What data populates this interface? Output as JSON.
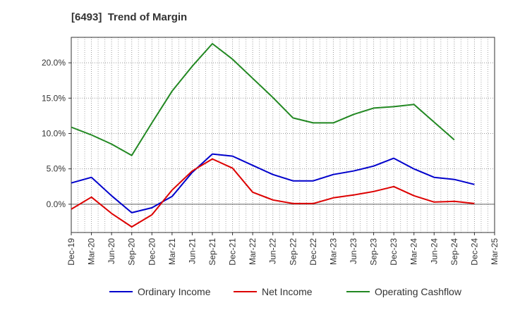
{
  "chart_data": {
    "type": "line",
    "title": "[6493]  Trend of Margin",
    "xlabel": "",
    "ylabel": "",
    "x": [
      "Dec-19",
      "Mar-20",
      "Jun-20",
      "Sep-20",
      "Dec-20",
      "Mar-21",
      "Jun-21",
      "Sep-21",
      "Dec-21",
      "Mar-22",
      "Jun-22",
      "Sep-22",
      "Dec-22",
      "Mar-23",
      "Jun-23",
      "Sep-23",
      "Dec-23",
      "Mar-24",
      "Jun-24",
      "Sep-24",
      "Dec-24",
      "Mar-25"
    ],
    "yticks": [
      0,
      5,
      10,
      15,
      20
    ],
    "ytick_labels": [
      "0.0%",
      "5.0%",
      "10.0%",
      "15.0%",
      "20.0%"
    ],
    "ylim": [
      -4.0,
      23.6
    ],
    "grid": true,
    "legend_position": "bottom",
    "series": [
      {
        "name": "Ordinary Income",
        "color": "#0000cc",
        "values": [
          3.0,
          3.8,
          1.2,
          -1.2,
          -0.5,
          1.1,
          4.5,
          7.1,
          6.8,
          5.5,
          4.2,
          3.3,
          3.3,
          4.2,
          4.7,
          5.4,
          6.5,
          5.0,
          3.8,
          3.5,
          2.8,
          null
        ]
      },
      {
        "name": "Net Income",
        "color": "#dd0000",
        "values": [
          -0.7,
          1.0,
          -1.3,
          -3.2,
          -1.5,
          2.0,
          4.7,
          6.4,
          5.1,
          1.7,
          0.6,
          0.1,
          0.1,
          0.9,
          1.3,
          1.8,
          2.5,
          1.2,
          0.3,
          0.4,
          0.1,
          null
        ]
      },
      {
        "name": "Operating Cashflow",
        "color": "#228822",
        "values": [
          10.9,
          9.8,
          8.5,
          6.9,
          11.5,
          16.0,
          19.5,
          22.7,
          20.5,
          17.8,
          15.1,
          12.2,
          11.5,
          11.5,
          12.7,
          13.6,
          13.8,
          14.1,
          11.6,
          9.1,
          null,
          null
        ]
      }
    ]
  }
}
